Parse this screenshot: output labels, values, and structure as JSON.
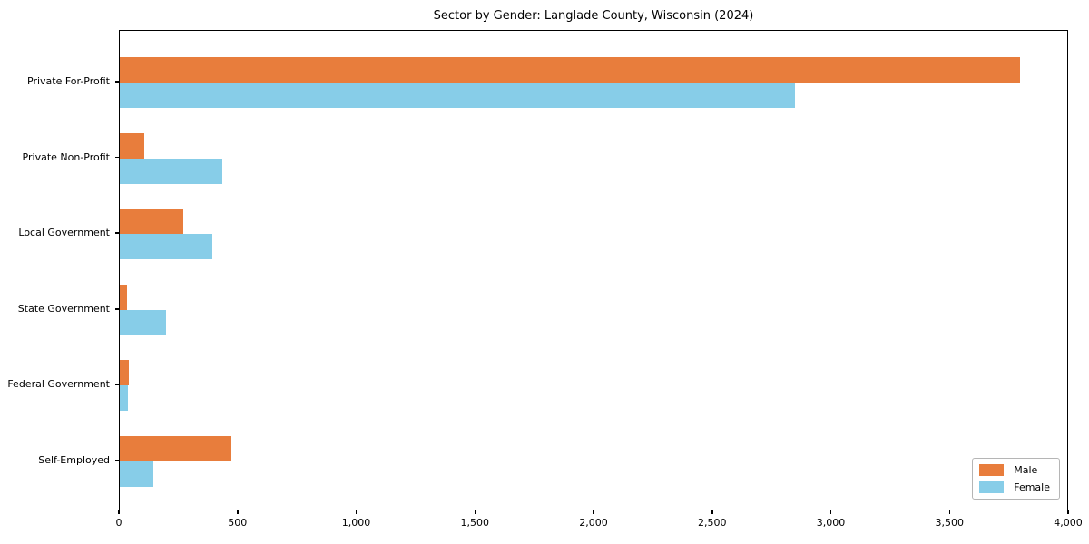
{
  "chart_data": {
    "type": "bar",
    "orientation": "horizontal",
    "title": "Sector by Gender: Langlade County, Wisconsin (2024)",
    "categories": [
      "Private For-Profit",
      "Private Non-Profit",
      "Local Government",
      "State Government",
      "Federal Government",
      "Self-Employed"
    ],
    "series": [
      {
        "name": "Male",
        "color": "#e87d3c",
        "values": [
          3805,
          105,
          270,
          32,
          38,
          470
        ]
      },
      {
        "name": "Female",
        "color": "#87cde8",
        "values": [
          2855,
          435,
          390,
          195,
          35,
          140
        ]
      }
    ],
    "xlabel": "",
    "ylabel": "",
    "xlim": [
      0,
      4000
    ],
    "xticks": [
      {
        "value": 0,
        "label": "0"
      },
      {
        "value": 500,
        "label": "500"
      },
      {
        "value": 1000,
        "label": "1,000"
      },
      {
        "value": 1500,
        "label": "1,500"
      },
      {
        "value": 2000,
        "label": "2,000"
      },
      {
        "value": 2500,
        "label": "2,500"
      },
      {
        "value": 3000,
        "label": "3,000"
      },
      {
        "value": 3500,
        "label": "3,500"
      },
      {
        "value": 4000,
        "label": "4,000"
      }
    ],
    "grid": false,
    "legend": {
      "position": "lower right",
      "entries": [
        "Male",
        "Female"
      ]
    }
  },
  "colors": {
    "background": "#ffffff",
    "axis": "#000000",
    "text": "#000000",
    "legend_border": "#b5b5b5",
    "male": "#e87d3c",
    "female": "#87cde8"
  }
}
